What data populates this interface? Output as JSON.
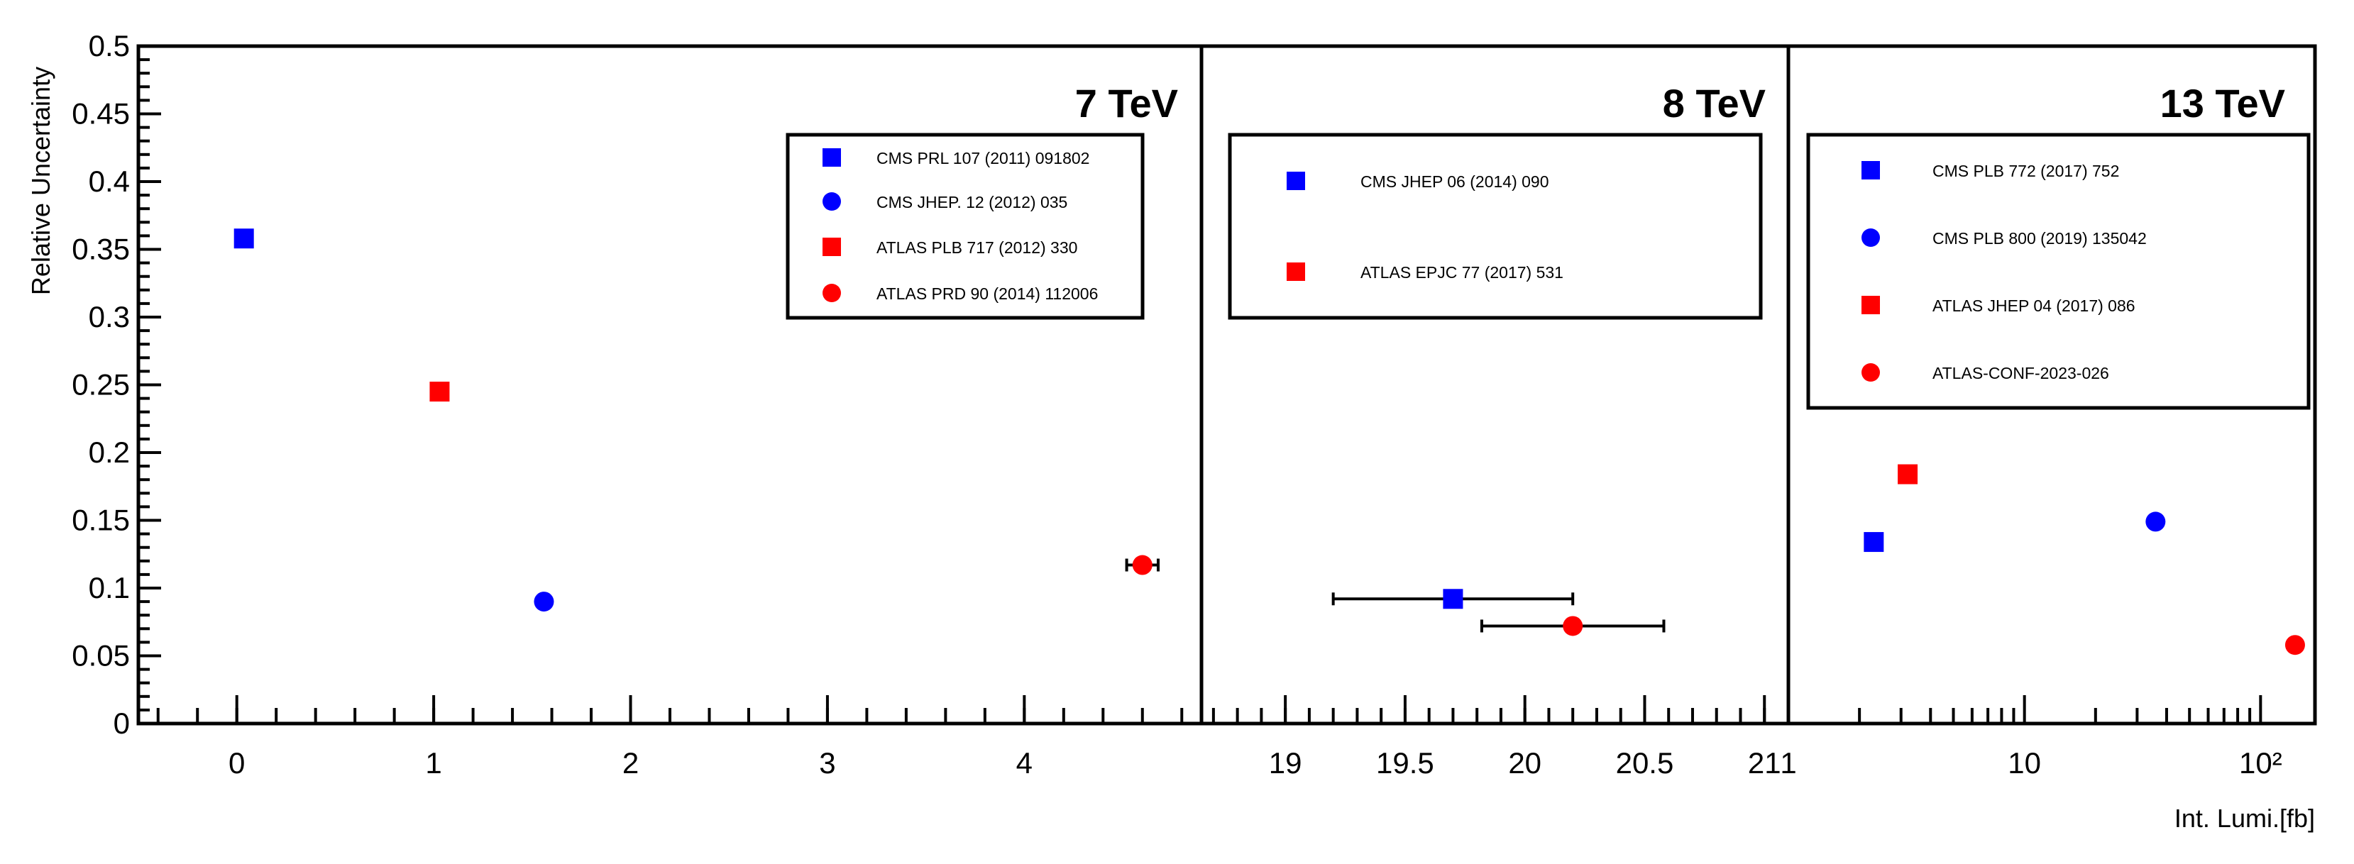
{
  "chart_data": {
    "type": "scatter",
    "ylabel": "Relative Uncertainty",
    "xlabel": "Int. Lumi.[fb]",
    "ylim": [
      0,
      0.5
    ],
    "y_ticks": [
      "0",
      "0.05",
      "0.1",
      "0.15",
      "0.2",
      "0.25",
      "0.3",
      "0.35",
      "0.4",
      "0.45",
      "0.5"
    ],
    "panels": [
      {
        "label": "7 TeV",
        "xscale": "linear",
        "xlim": [
          -0.5,
          4.9
        ],
        "x_ticks": [
          "0",
          "1",
          "2",
          "3",
          "4"
        ],
        "legend_position": "top-right",
        "series": [
          {
            "name": "CMS PRL 107 (2011) 091802",
            "marker": "square",
            "color": "#0000ff",
            "x": 0.036,
            "y": 0.358
          },
          {
            "name": "CMS JHEP. 12 (2012) 035",
            "marker": "circle",
            "color": "#0000ff",
            "x": 1.56,
            "y": 0.09
          },
          {
            "name": "ATLAS PLB 717 (2012) 330",
            "marker": "square",
            "color": "#ff0000",
            "x": 1.03,
            "y": 0.245
          },
          {
            "name": "ATLAS PRD 90 (2014) 112006",
            "marker": "circle",
            "color": "#ff0000",
            "x": 4.6,
            "y": 0.117,
            "xerr": 0.08
          }
        ]
      },
      {
        "label": "8 TeV",
        "xscale": "linear",
        "xlim": [
          18.65,
          21.1
        ],
        "x_ticks": [
          "19",
          "19.5",
          "20",
          "20.5",
          "21"
        ],
        "legend_position": "top",
        "series": [
          {
            "name": "CMS JHEP 06 (2014) 090",
            "marker": "square",
            "color": "#0000ff",
            "x": 19.7,
            "y": 0.092,
            "xerr": 0.5
          },
          {
            "name": "ATLAS EPJC 77 (2017) 531",
            "marker": "square",
            "color": "#ff0000",
            "x": 20.2,
            "y": 0.072,
            "xerr": 0.38,
            "point_marker": "circle"
          }
        ]
      },
      {
        "label": "13 TeV",
        "xscale": "log",
        "xlim": [
          1,
          170
        ],
        "x_ticks": [
          "1",
          "10",
          "10²"
        ],
        "legend_position": "top",
        "series": [
          {
            "name": "CMS PLB 772 (2017) 752",
            "marker": "square",
            "color": "#0000ff",
            "x": 2.3,
            "y": 0.134
          },
          {
            "name": "CMS PLB 800 (2019) 135042",
            "marker": "circle",
            "color": "#0000ff",
            "x": 35.9,
            "y": 0.149
          },
          {
            "name": "ATLAS JHEP 04 (2017) 086",
            "marker": "square",
            "color": "#ff0000",
            "x": 3.2,
            "y": 0.184
          },
          {
            "name": "ATLAS-CONF-2023-026",
            "marker": "circle",
            "color": "#ff0000",
            "x": 140,
            "y": 0.058
          }
        ]
      }
    ]
  }
}
